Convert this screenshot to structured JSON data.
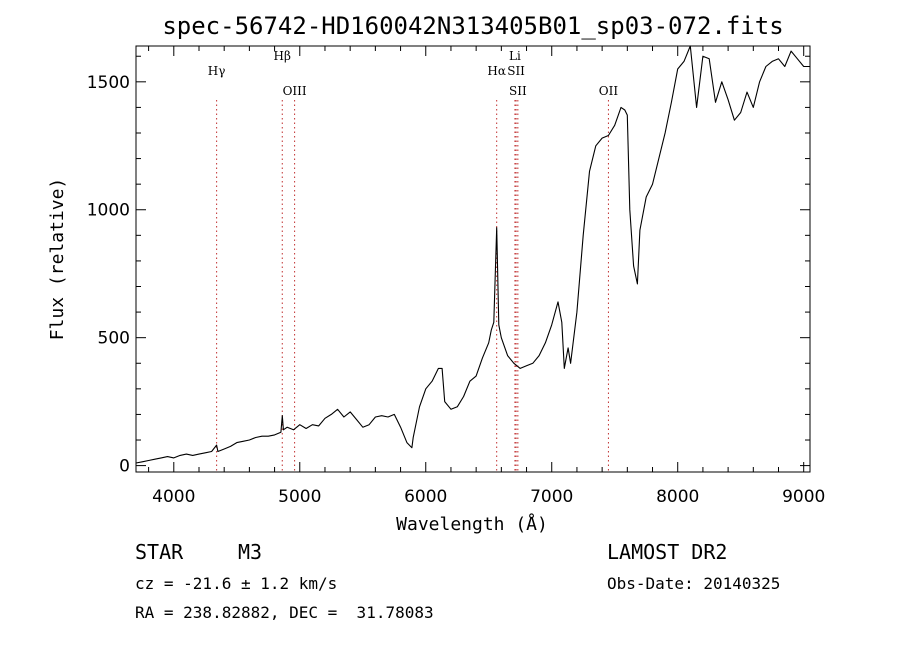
{
  "chart_data": {
    "type": "line",
    "title": "spec-56742-HD160042N313405B01_sp03-072.fits",
    "xlabel": "Wavelength (Å)",
    "ylabel": "Flux (relative)",
    "xlim": [
      3700,
      9050
    ],
    "ylim": [
      -25,
      1640
    ],
    "x_ticks": [
      4000,
      5000,
      6000,
      7000,
      8000,
      9000
    ],
    "y_ticks": [
      0,
      500,
      1000,
      1500
    ],
    "grid": false,
    "series": [
      {
        "x": [
          3700,
          3750,
          3800,
          3850,
          3900,
          3950,
          4000,
          4050,
          4100,
          4150,
          4200,
          4250,
          4300,
          4340,
          4350,
          4400,
          4450,
          4500,
          4550,
          4600,
          4650,
          4700,
          4750,
          4800,
          4850,
          4861,
          4870,
          4900,
          4950,
          5000,
          5050,
          5100,
          5150,
          5200,
          5250,
          5300,
          5350,
          5400,
          5450,
          5500,
          5550,
          5600,
          5650,
          5700,
          5750,
          5800,
          5850,
          5890,
          5900,
          5950,
          6000,
          6050,
          6100,
          6130,
          6150,
          6200,
          6250,
          6300,
          6350,
          6400,
          6450,
          6500,
          6520,
          6540,
          6563,
          6580,
          6600,
          6650,
          6700,
          6750,
          6800,
          6850,
          6900,
          6950,
          7000,
          7050,
          7080,
          7100,
          7130,
          7150,
          7200,
          7250,
          7300,
          7350,
          7400,
          7450,
          7500,
          7550,
          7580,
          7600,
          7620,
          7650,
          7680,
          7700,
          7750,
          7800,
          7850,
          7900,
          7950,
          8000,
          8050,
          8100,
          8150,
          8200,
          8250,
          8300,
          8350,
          8400,
          8450,
          8500,
          8550,
          8600,
          8650,
          8700,
          8750,
          8800,
          8850,
          8900,
          8950,
          9000,
          9050
        ],
        "y": [
          10,
          15,
          20,
          25,
          30,
          35,
          30,
          40,
          45,
          40,
          45,
          50,
          55,
          80,
          55,
          65,
          75,
          90,
          95,
          100,
          110,
          115,
          115,
          120,
          130,
          195,
          140,
          150,
          140,
          160,
          145,
          160,
          155,
          185,
          200,
          220,
          190,
          210,
          180,
          150,
          160,
          190,
          195,
          190,
          200,
          150,
          90,
          70,
          110,
          230,
          300,
          330,
          380,
          380,
          250,
          220,
          230,
          270,
          330,
          350,
          420,
          480,
          530,
          560,
          930,
          550,
          500,
          430,
          400,
          380,
          390,
          400,
          430,
          480,
          550,
          640,
          560,
          380,
          460,
          400,
          600,
          900,
          1150,
          1250,
          1280,
          1290,
          1330,
          1400,
          1390,
          1370,
          1000,
          780,
          710,
          920,
          1050,
          1100,
          1200,
          1300,
          1420,
          1550,
          1580,
          1640,
          1400,
          1600,
          1590,
          1420,
          1500,
          1430,
          1350,
          1380,
          1460,
          1400,
          1500,
          1560,
          1580,
          1590,
          1560,
          1620,
          1590,
          1560,
          1560
        ]
      }
    ],
    "lines": [
      {
        "label": "Hγ",
        "x": 4340
      },
      {
        "label": "Hβ",
        "x": 4861
      },
      {
        "label": "OIII",
        "x": 4959
      },
      {
        "label": "Hα",
        "x": 6563
      },
      {
        "label": "Li",
        "x": 6708
      },
      {
        "label": "SII",
        "x": 6717
      },
      {
        "label": "SII",
        "x": 6731
      },
      {
        "label": "OII",
        "x": 7450
      }
    ]
  },
  "info": {
    "star_label": "STAR",
    "spectral_type": "M3",
    "cz": "cz = -21.6 ± 1.2 km/s",
    "coords": "RA = 238.82882, DEC =  31.78083",
    "survey": "LAMOST DR2",
    "obs_date": "Obs-Date: 20140325"
  }
}
